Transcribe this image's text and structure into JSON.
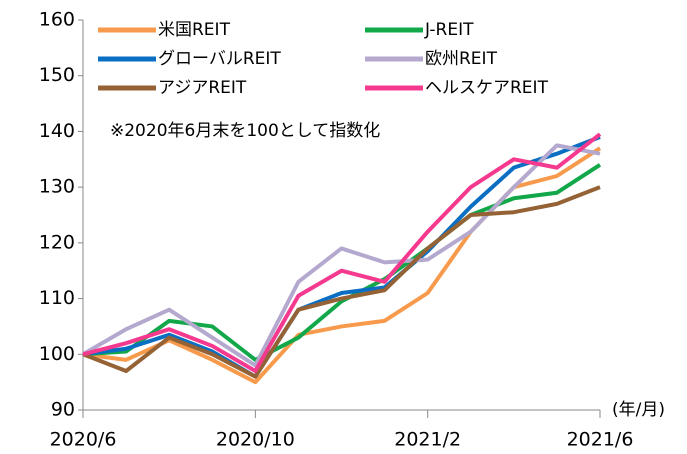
{
  "chart_data": {
    "type": "line",
    "note": "※2020年6月末を100として指数化",
    "x_unit": "(年/月)",
    "categories": [
      "2020/6",
      null,
      null,
      null,
      "2020/10",
      null,
      null,
      null,
      "2021/2",
      null,
      null,
      null,
      "2021/6"
    ],
    "ylim": [
      90,
      160
    ],
    "yticks": [
      90,
      100,
      110,
      120,
      130,
      140,
      150,
      160
    ],
    "grid": false,
    "legend": "top",
    "series": [
      {
        "name": "米国REIT",
        "color": "#f79a4c",
        "values": [
          100,
          99,
          102.5,
          99,
          95,
          103.5,
          105,
          106,
          111,
          122,
          130,
          132,
          137
        ]
      },
      {
        "name": "J-REIT",
        "color": "#12a84a",
        "values": [
          100,
          100.5,
          106,
          105,
          99,
          103,
          109.5,
          113.5,
          119,
          125,
          128,
          129,
          134
        ]
      },
      {
        "name": "グローバルREIT",
        "color": "#0a6fc2",
        "values": [
          100,
          101,
          103.5,
          100.5,
          96,
          108,
          111,
          112,
          118.5,
          126.5,
          133.5,
          136,
          139
        ]
      },
      {
        "name": "欧州REIT",
        "color": "#b4a8cf",
        "values": [
          100,
          104.5,
          108,
          103,
          98,
          113,
          119,
          116.5,
          117,
          122,
          130,
          137.5,
          136
        ]
      },
      {
        "name": "アジアREIT",
        "color": "#946234",
        "values": [
          100,
          97,
          103,
          100,
          96,
          108,
          110,
          111.5,
          119,
          125,
          125.5,
          127,
          130
        ]
      },
      {
        "name": "ヘルスケアREIT",
        "color": "#f4398f",
        "values": [
          100,
          102,
          104.5,
          101.5,
          97,
          110.5,
          115,
          113,
          122,
          130,
          135,
          133.5,
          139.5
        ]
      }
    ]
  }
}
